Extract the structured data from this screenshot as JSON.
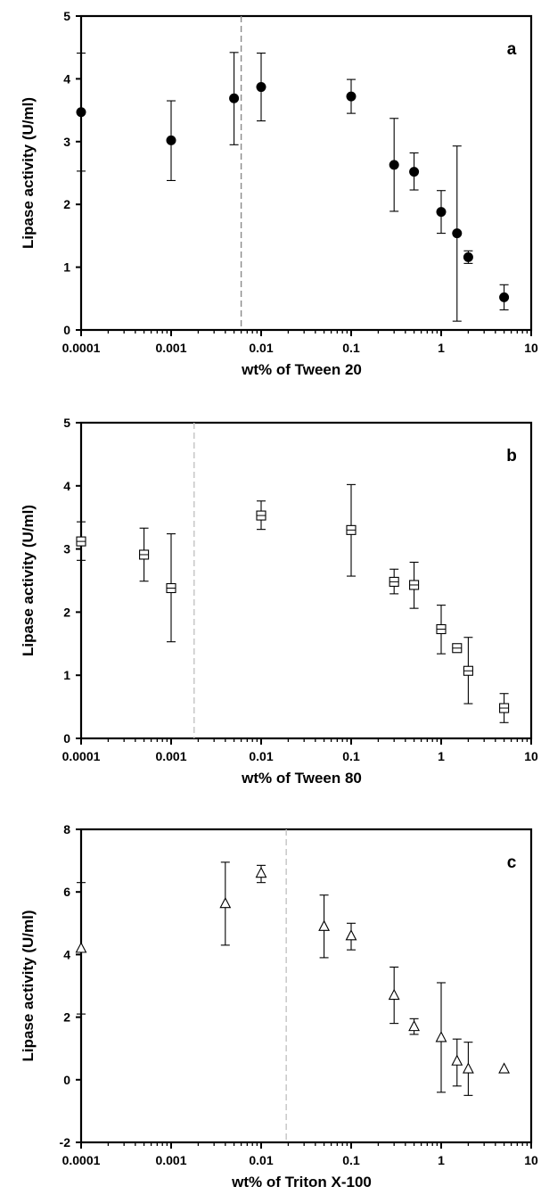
{
  "chart_data": [
    {
      "type": "scatter",
      "panel_label": "a",
      "xlabel": "wt% of Tween 20",
      "ylabel": "Lipase activity (U/ml)",
      "xscale": "log",
      "xlim": [
        0.0001,
        10
      ],
      "ylim": [
        0,
        5
      ],
      "xticks": [
        0.0001,
        0.001,
        0.01,
        0.1,
        1,
        10
      ],
      "xtick_labels": [
        "0.0001",
        "0.001",
        "0.01",
        "0.1",
        "1",
        "10"
      ],
      "yticks": [
        0,
        1,
        2,
        3,
        4,
        5
      ],
      "ytick_labels": [
        "0",
        "1",
        "2",
        "3",
        "4",
        "5"
      ],
      "marker": "filled-circle",
      "reference_line_x": 0.006,
      "grid": false,
      "points": [
        {
          "x": 0.0001,
          "y": 3.47,
          "err_low": 2.53,
          "err_high": 4.41
        },
        {
          "x": 0.001,
          "y": 3.02,
          "err_low": 2.38,
          "err_high": 3.65
        },
        {
          "x": 0.005,
          "y": 3.69,
          "err_low": 2.95,
          "err_high": 4.42
        },
        {
          "x": 0.01,
          "y": 3.87,
          "err_low": 3.33,
          "err_high": 4.41
        },
        {
          "x": 0.1,
          "y": 3.72,
          "err_low": 3.45,
          "err_high": 3.99
        },
        {
          "x": 0.3,
          "y": 2.63,
          "err_low": 1.89,
          "err_high": 3.37
        },
        {
          "x": 0.5,
          "y": 2.52,
          "err_low": 2.23,
          "err_high": 2.82
        },
        {
          "x": 1,
          "y": 1.88,
          "err_low": 1.54,
          "err_high": 2.22
        },
        {
          "x": 1.5,
          "y": 1.54,
          "err_low": 0.14,
          "err_high": 2.93
        },
        {
          "x": 2,
          "y": 1.16,
          "err_low": 1.06,
          "err_high": 1.26
        },
        {
          "x": 5,
          "y": 0.52,
          "err_low": 0.32,
          "err_high": 0.72
        }
      ]
    },
    {
      "type": "scatter",
      "panel_label": "b",
      "xlabel": "wt% of Tween 80",
      "ylabel": "Lipase activity (U/ml)",
      "xscale": "log",
      "xlim": [
        0.0001,
        10
      ],
      "ylim": [
        0,
        5
      ],
      "xticks": [
        0.0001,
        0.001,
        0.01,
        0.1,
        1,
        10
      ],
      "xtick_labels": [
        "0.0001",
        "0.001",
        "0.01",
        "0.1",
        "1",
        "10"
      ],
      "yticks": [
        0,
        1,
        2,
        3,
        4,
        5
      ],
      "ytick_labels": [
        "0",
        "1",
        "2",
        "3",
        "4",
        "5"
      ],
      "marker": "open-square",
      "reference_line_x": 0.0018,
      "grid": false,
      "points": [
        {
          "x": 0.0001,
          "y": 3.12,
          "err_low": 2.82,
          "err_high": 3.43
        },
        {
          "x": 0.0005,
          "y": 2.91,
          "err_low": 2.49,
          "err_high": 3.33
        },
        {
          "x": 0.001,
          "y": 2.38,
          "err_low": 1.53,
          "err_high": 3.24
        },
        {
          "x": 0.01,
          "y": 3.53,
          "err_low": 3.31,
          "err_high": 3.76
        },
        {
          "x": 0.1,
          "y": 3.3,
          "err_low": 2.57,
          "err_high": 4.02
        },
        {
          "x": 0.3,
          "y": 2.48,
          "err_low": 2.29,
          "err_high": 2.68
        },
        {
          "x": 0.5,
          "y": 2.43,
          "err_low": 2.06,
          "err_high": 2.79
        },
        {
          "x": 1,
          "y": 1.73,
          "err_low": 1.34,
          "err_high": 2.11
        },
        {
          "x": 1.5,
          "y": 1.43,
          "err_low": 1.38,
          "err_high": 1.48
        },
        {
          "x": 2,
          "y": 1.07,
          "err_low": 0.55,
          "err_high": 1.6
        },
        {
          "x": 5,
          "y": 0.48,
          "err_low": 0.25,
          "err_high": 0.71
        }
      ]
    },
    {
      "type": "scatter",
      "panel_label": "c",
      "xlabel": "wt% of Triton X-100",
      "ylabel": "Lipase activity (U/ml)",
      "xscale": "log",
      "xlim": [
        0.0001,
        10
      ],
      "ylim": [
        -2,
        8
      ],
      "xticks": [
        0.0001,
        0.001,
        0.01,
        0.1,
        1,
        10
      ],
      "xtick_labels": [
        "0.0001",
        "0.001",
        "0.01",
        "0.1",
        "1",
        "10"
      ],
      "yticks": [
        -2,
        0,
        2,
        4,
        6,
        8
      ],
      "ytick_labels": [
        "-2",
        "0",
        "2",
        "4",
        "6",
        "8"
      ],
      "marker": "open-triangle",
      "reference_line_x": 0.019,
      "grid": false,
      "points": [
        {
          "x": 0.0001,
          "y": 4.2,
          "err_low": 2.1,
          "err_high": 6.3
        },
        {
          "x": 0.004,
          "y": 5.63,
          "err_low": 4.3,
          "err_high": 6.95
        },
        {
          "x": 0.01,
          "y": 6.6,
          "err_low": 6.3,
          "err_high": 6.85
        },
        {
          "x": 0.05,
          "y": 4.9,
          "err_low": 3.9,
          "err_high": 5.9
        },
        {
          "x": 0.1,
          "y": 4.6,
          "err_low": 4.15,
          "err_high": 5.0
        },
        {
          "x": 0.3,
          "y": 2.7,
          "err_low": 1.8,
          "err_high": 3.6
        },
        {
          "x": 0.5,
          "y": 1.7,
          "err_low": 1.45,
          "err_high": 1.95
        },
        {
          "x": 1,
          "y": 1.35,
          "err_low": -0.4,
          "err_high": 3.1
        },
        {
          "x": 1.5,
          "y": 0.6,
          "err_low": -0.2,
          "err_high": 1.3
        },
        {
          "x": 2,
          "y": 0.35,
          "err_low": -0.5,
          "err_high": 1.2
        },
        {
          "x": 5,
          "y": 0.35,
          "err_low": null,
          "err_high": null
        }
      ]
    }
  ]
}
